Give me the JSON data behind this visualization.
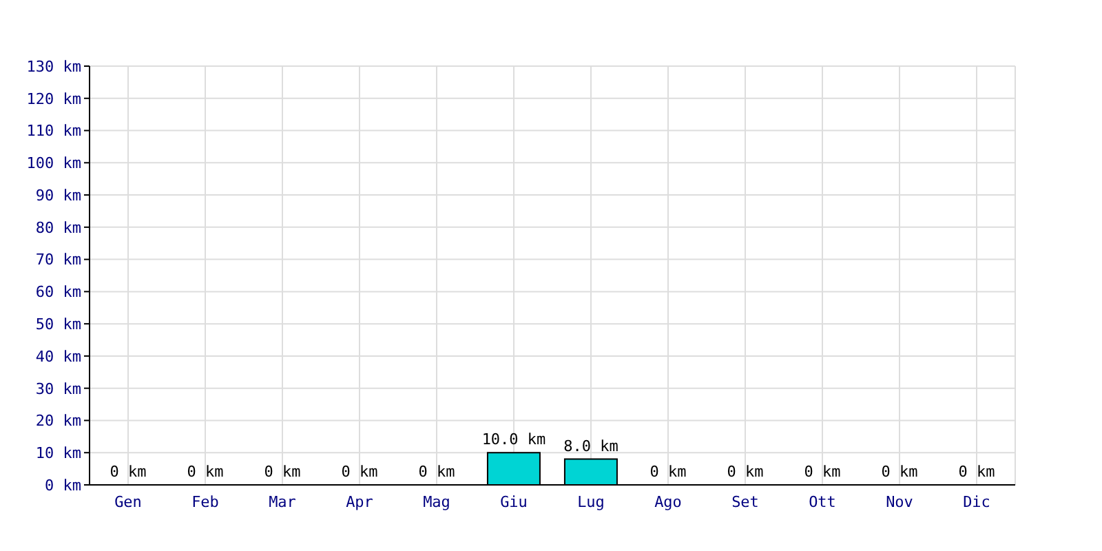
{
  "chart_data": {
    "type": "bar",
    "categories": [
      "Gen",
      "Feb",
      "Mar",
      "Apr",
      "Mag",
      "Giu",
      "Lug",
      "Ago",
      "Set",
      "Ott",
      "Nov",
      "Dic"
    ],
    "values": [
      0,
      0,
      0,
      0,
      0,
      10,
      8,
      0,
      0,
      0,
      0,
      0
    ],
    "value_labels": [
      "0 km",
      "0 km",
      "0 km",
      "0 km",
      "0 km",
      "10.0 km",
      "8.0 km",
      "0 km",
      "0 km",
      "0 km",
      "0 km",
      "0 km"
    ],
    "color": "#00d4d4",
    "ylim": [
      0,
      130
    ],
    "yticks": [
      {
        "value": 0,
        "label": "0 km"
      },
      {
        "value": 10,
        "label": "10 km"
      },
      {
        "value": 20,
        "label": "20 km"
      },
      {
        "value": 30,
        "label": "30 km"
      },
      {
        "value": 40,
        "label": "40 km"
      },
      {
        "value": 50,
        "label": "50 km"
      },
      {
        "value": 60,
        "label": "60 km"
      },
      {
        "value": 70,
        "label": "70 km"
      },
      {
        "value": 80,
        "label": "80 km"
      },
      {
        "value": 90,
        "label": "90 km"
      },
      {
        "value": 100,
        "label": "100 km"
      },
      {
        "value": 110,
        "label": "110 km"
      },
      {
        "value": 120,
        "label": "120 km"
      },
      {
        "value": 130,
        "label": "130 km"
      }
    ],
    "grid": true
  }
}
